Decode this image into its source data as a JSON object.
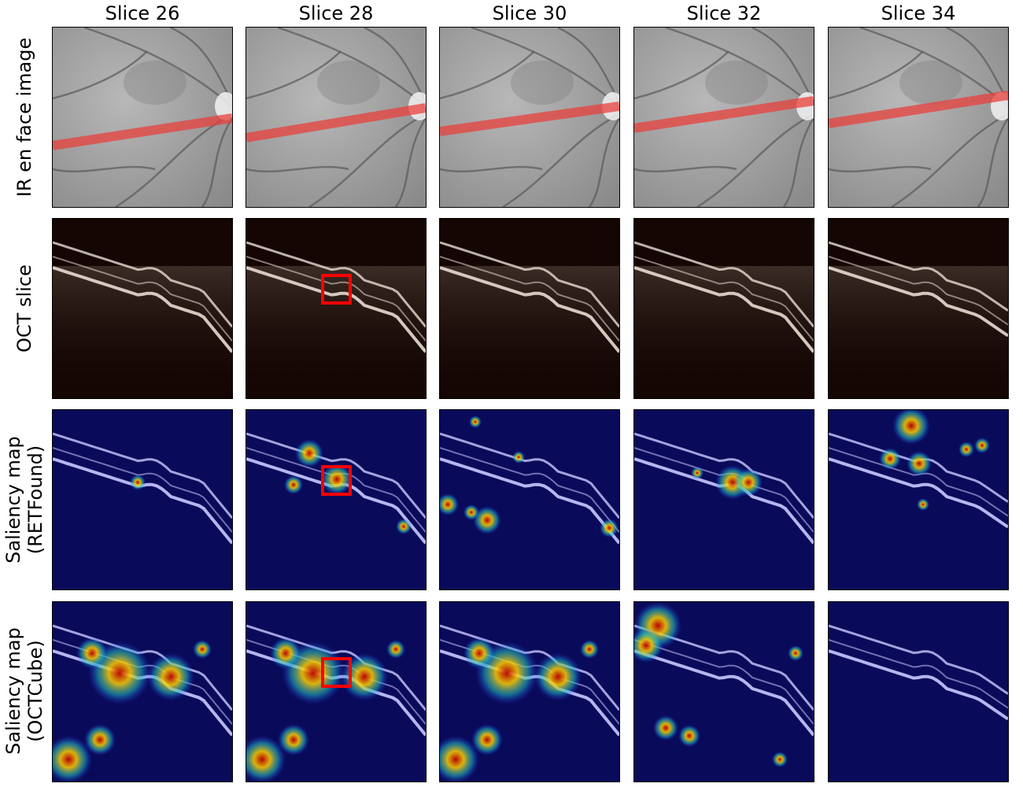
{
  "columns": [
    "Slice 26",
    "Slice 28",
    "Slice 30",
    "Slice 32",
    "Slice 34"
  ],
  "rows": [
    {
      "label_lines": [
        "IR en face image"
      ],
      "kind": "ir"
    },
    {
      "label_lines": [
        "OCT slice"
      ],
      "kind": "oct"
    },
    {
      "label_lines": [
        "Saliency map",
        "(RETFound)"
      ],
      "kind": "sal_ret"
    },
    {
      "label_lines": [
        "Saliency map",
        "(OCTCube)"
      ],
      "kind": "sal_cube"
    }
  ],
  "colors": {
    "scan_line": "#e8403c",
    "highlight_box": "#ff0000",
    "heat_background": "#0a0a5a",
    "oct_background": "#140603"
  },
  "highlighted_column": "Slice 28"
}
